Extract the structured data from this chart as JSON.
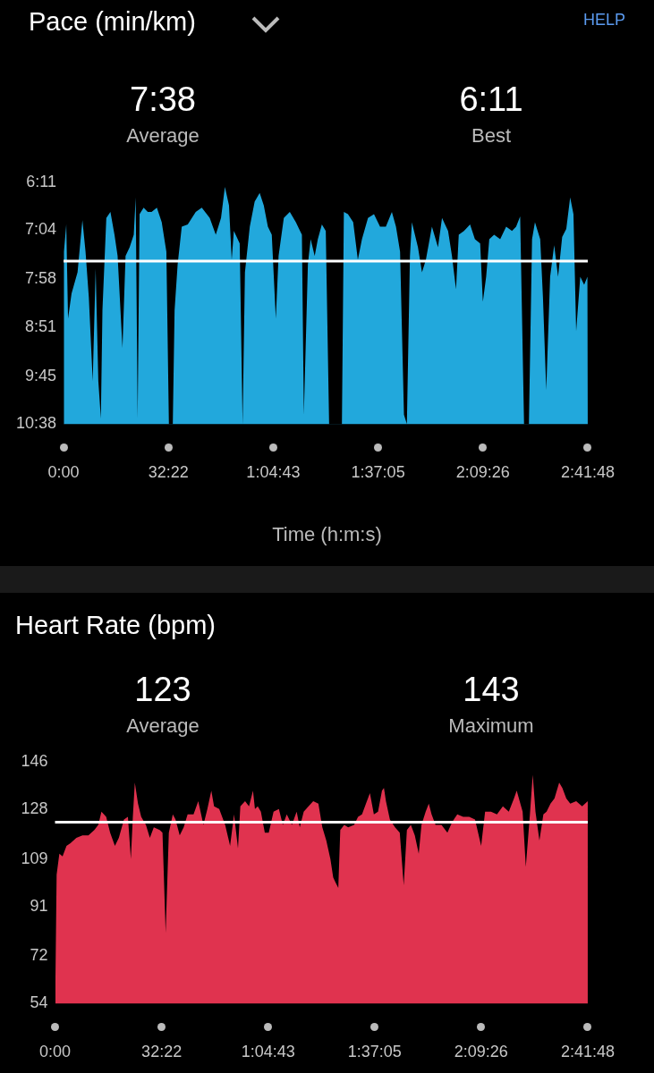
{
  "chart_data": [
    {
      "type": "area",
      "title": "Pace (min/km)",
      "xlabel": "Time (h:m:s)",
      "annotations": [
        "7:38",
        "Average",
        "6:11",
        "Best",
        "HELP"
      ],
      "x": [
        0,
        7,
        50,
        83,
        148,
        259,
        349,
        407,
        468,
        540,
        594,
        644,
        691,
        720,
        792,
        868,
        943,
        1001,
        1091,
        1148,
        1224,
        1300,
        1336,
        1372,
        1408,
        1483,
        1559,
        1631,
        1728,
        1818,
        1904,
        1951,
        2023,
        2056,
        2113,
        2189,
        2300,
        2448,
        2560,
        2707,
        2819,
        2916,
        2988,
        3064,
        3114,
        3154,
        3262,
        3316,
        3359,
        3449,
        3539,
        3632,
        3708,
        3784,
        3856,
        3931,
        3982,
        4079,
        4190,
        4302,
        4414,
        4450,
        4525,
        4576,
        4651,
        4709,
        4784,
        4856,
        4918,
        4946,
        5155,
        5191,
        5267,
        5364,
        5450,
        5526,
        5638,
        5749,
        5861,
        5969,
        6080,
        6156,
        6232,
        6304,
        6358,
        6415,
        6451,
        6563,
        6638,
        6710,
        6822,
        6934,
        7009,
        7121,
        7193,
        7268,
        7319,
        7416,
        7528,
        7618,
        7715,
        7765,
        7826,
        7884,
        7974,
        8086,
        8197,
        8305,
        8381,
        8456,
        8528,
        8618,
        8676,
        8730,
        8827,
        8878,
        8939,
        9011,
        9086,
        9158,
        9234,
        9310,
        9382,
        9443,
        9493,
        9569,
        9641,
        9702,
        9708
      ],
      "series": [
        {
          "color": "#22a8dc",
          "values": [
            10.63,
            7.46,
            6.96,
            8.69,
            8.23,
            7.84,
            6.88,
            7.46,
            8.3,
            9.84,
            7.77,
            9.84,
            10.53,
            8.54,
            6.84,
            6.73,
            7.15,
            7.54,
            9.23,
            7.54,
            7.38,
            7.15,
            6.46,
            10.53,
            6.77,
            6.65,
            6.73,
            6.73,
            6.65,
            6.92,
            7.46,
            10.63,
            10.63,
            8.54,
            7.69,
            7.0,
            6.96,
            6.73,
            6.65,
            6.84,
            7.15,
            6.84,
            6.27,
            6.61,
            7.61,
            7.08,
            7.31,
            10.63,
            7.84,
            7.0,
            6.54,
            6.38,
            6.61,
            7.0,
            7.15,
            8.69,
            7.54,
            6.84,
            6.73,
            6.92,
            7.15,
            10.46,
            7.69,
            7.23,
            7.54,
            7.23,
            6.96,
            7.08,
            10.63,
            10.63,
            10.63,
            6.73,
            6.77,
            6.92,
            7.61,
            7.23,
            6.84,
            6.77,
            7.0,
            7.0,
            6.73,
            7.0,
            7.46,
            10.46,
            10.63,
            7.54,
            6.92,
            7.38,
            7.84,
            7.61,
            7.0,
            7.38,
            6.84,
            7.08,
            7.54,
            8.15,
            7.15,
            7.08,
            6.96,
            7.23,
            7.31,
            8.38,
            7.92,
            7.23,
            7.15,
            7.23,
            7.0,
            7.08,
            7.0,
            6.81,
            10.63,
            10.63,
            7.23,
            6.92,
            7.23,
            8.3,
            10.0,
            7.92,
            7.34,
            7.92,
            7.19,
            7.04,
            6.46,
            6.77,
            8.92,
            7.92,
            8.07,
            7.92,
            10.63
          ]
        }
      ],
      "xlim": [
        0,
        9708
      ],
      "xticks": [
        {
          "value": 0,
          "label": "0:00"
        },
        {
          "value": 1942,
          "label": "32:22"
        },
        {
          "value": 3883,
          "label": "1:04:43"
        },
        {
          "value": 5825,
          "label": "1:37:05"
        },
        {
          "value": 7766,
          "label": "2:09:26"
        },
        {
          "value": 9708,
          "label": "2:41:48"
        }
      ],
      "ylim": [
        10.6333,
        6.1833
      ],
      "yticks": [
        {
          "value": 6.1833,
          "label": "6:11"
        },
        {
          "value": 7.0667,
          "label": "7:04"
        },
        {
          "value": 7.9667,
          "label": "7:58"
        },
        {
          "value": 8.85,
          "label": "8:51"
        },
        {
          "value": 9.75,
          "label": "9:45"
        },
        {
          "value": 10.6333,
          "label": "10:38"
        }
      ],
      "ref_lines": [
        {
          "axis": "y",
          "value": 7.6333,
          "color": "#ffffff"
        }
      ],
      "grid": false,
      "legend": false
    },
    {
      "type": "area",
      "title": "Heart Rate (bpm)",
      "annotations": [
        "123",
        "Average",
        "143",
        "Maximum"
      ],
      "x": [
        0,
        7,
        29,
        79,
        137,
        209,
        281,
        389,
        500,
        608,
        716,
        788,
        846,
        932,
        1004,
        1091,
        1163,
        1256,
        1328,
        1382,
        1418,
        1454,
        1512,
        1570,
        1656,
        1728,
        1800,
        1908,
        1958,
        2016,
        2074,
        2146,
        2196,
        2272,
        2344,
        2416,
        2524,
        2610,
        2704,
        2776,
        2848,
        2898,
        2992,
        3100,
        3190,
        3262,
        3334,
        3377,
        3463,
        3535,
        3607,
        3643,
        3694,
        3751,
        3823,
        3895,
        3982,
        4079,
        4151,
        4223,
        4316,
        4403,
        4460,
        4532,
        4619,
        4705,
        4799,
        4871,
        4943,
        5018,
        5069,
        5112,
        5162,
        5198,
        5270,
        5342,
        5450,
        5522,
        5594,
        5666,
        5738,
        5810,
        5886,
        5958,
        5994,
        6030,
        6102,
        6196,
        6282,
        6354,
        6412,
        6484,
        6556,
        6628,
        6678,
        6754,
        6811,
        6862,
        6934,
        7042,
        7150,
        7236,
        7330,
        7438,
        7546,
        7654,
        7765,
        7837,
        7945,
        8053,
        8161,
        8269,
        8363,
        8413,
        8521,
        8579,
        8654,
        8705,
        8755,
        8827,
        8899,
        8957,
        9029,
        9101,
        9187,
        9245,
        9317,
        9389,
        9497,
        9605,
        9708
      ],
      "series": [
        {
          "color": "#e0334f",
          "values": [
            54,
            62,
            103,
            111,
            110,
            114,
            115,
            117,
            118,
            118,
            120,
            122,
            127,
            125,
            119,
            114,
            117,
            124,
            125,
            109,
            125,
            138,
            130,
            125,
            122,
            117,
            121,
            120,
            119,
            81,
            119,
            126,
            124,
            118,
            121,
            126,
            126,
            131,
            122,
            128,
            135,
            129,
            128,
            122,
            114,
            126,
            113,
            129,
            131,
            129,
            135,
            128,
            129,
            127,
            119,
            119,
            127,
            128,
            122,
            126,
            122,
            127,
            121,
            127,
            129,
            131,
            130,
            121,
            116,
            109,
            102,
            100,
            98,
            120,
            122,
            121,
            122,
            125,
            126,
            130,
            134,
            126,
            127,
            135,
            136,
            131,
            124,
            121,
            119,
            99,
            120,
            122,
            118,
            111,
            122,
            127,
            130,
            126,
            122,
            122,
            119,
            123,
            126,
            125,
            125,
            124,
            114,
            127,
            127,
            126,
            129,
            127,
            132,
            135,
            127,
            106,
            126,
            141,
            127,
            116,
            126,
            127,
            130,
            132,
            138,
            136,
            132,
            130,
            131,
            129,
            131
          ]
        }
      ],
      "xlim": [
        0,
        9708
      ],
      "xticks": [
        {
          "value": 0,
          "label": "0:00"
        },
        {
          "value": 1942,
          "label": "32:22"
        },
        {
          "value": 3883,
          "label": "1:04:43"
        },
        {
          "value": 5825,
          "label": "1:37:05"
        },
        {
          "value": 7766,
          "label": "2:09:26"
        },
        {
          "value": 9708,
          "label": "2:41:48"
        }
      ],
      "ylim": [
        54,
        146
      ],
      "yticks": [
        54,
        72,
        91,
        109,
        128,
        146
      ],
      "ref_lines": [
        {
          "axis": "y",
          "value": 123,
          "color": "#ffffff"
        }
      ],
      "grid": false,
      "legend": false
    }
  ]
}
